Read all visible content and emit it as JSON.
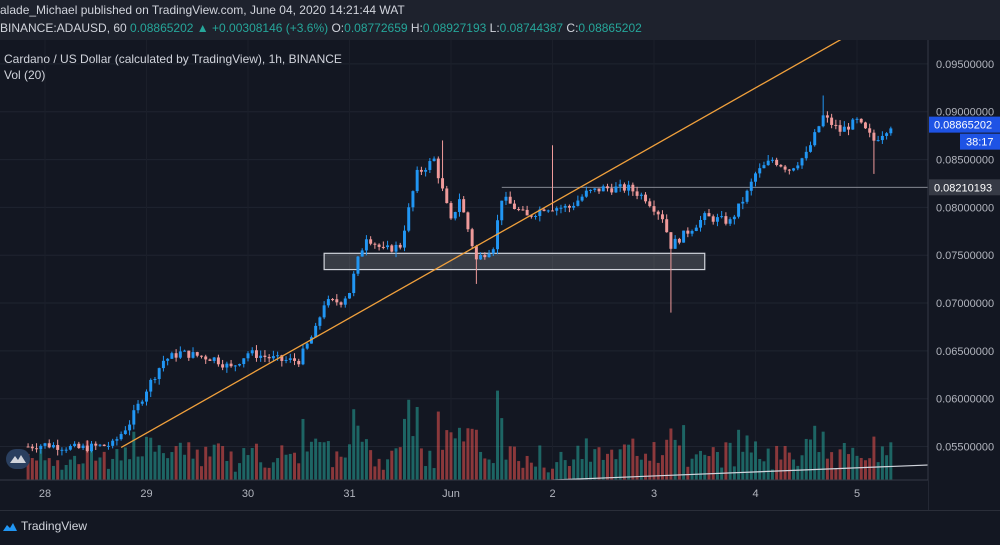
{
  "header": {
    "publisher": "alade_Michael published on TradingView.com, June 04, 2020 14:21:44 WAT",
    "symbol": "BINANCE:ADAUSD, 60",
    "last": "0.08865202",
    "change": "+0.00308146 (+3.6%)",
    "o_label": "O:",
    "o_value": "0.08772659",
    "h_label": "H:",
    "h_value": "0.08927193",
    "l_label": "L:",
    "l_value": "0.08744387",
    "c_label": "C:",
    "c_value": "0.08865202"
  },
  "legend": {
    "title": "Cardano / US Dollar (calculated by TradingView), 1h, BINANCE",
    "vol": "Vol (20)"
  },
  "footer": {
    "brand": "TradingView"
  },
  "colors": {
    "background": "#131722",
    "up": "#2196f3",
    "down": "#ef9a9a",
    "vol_up": "#26a69a",
    "vol_down": "#ef5350",
    "trendline": "#f0a03c",
    "support_box": "#d1d4dc",
    "price_label": "#1e53e5"
  },
  "chart_data": {
    "type": "candlestick",
    "y_ticks": [
      "0.09500000",
      "0.09000000",
      "0.08500000",
      "0.08000000",
      "0.07500000",
      "0.07000000",
      "0.06500000",
      "0.06000000",
      "0.05500000"
    ],
    "ylim": [
      0.0515,
      0.0975
    ],
    "x_ticks": [
      "28",
      "29",
      "30",
      "31",
      "Jun",
      "2",
      "3",
      "4",
      "5"
    ],
    "current_price_label": "0.08865202",
    "countdown_label": "38:17",
    "horizontal_level_label": "0.08210193",
    "horizontal_level": 0.0821,
    "support_zone": {
      "low": 0.0735,
      "high": 0.0752,
      "from": "May 30 18:00",
      "to": "Jun 3 12:00"
    },
    "trendline": {
      "from": {
        "x": "May 28 18:00",
        "y": 0.0549
      },
      "to": {
        "x": "Jun 4 16:00",
        "y": 0.0965
      }
    },
    "price_path": [
      [
        "May 27 20:00",
        0.055
      ],
      [
        "May 28 00:00",
        0.0552
      ],
      [
        "May 28 08:00",
        0.0548
      ],
      [
        "May 28 16:00",
        0.0552
      ],
      [
        "May 28 20:00",
        0.0575
      ],
      [
        "May 29 00:00",
        0.061
      ],
      [
        "May 29 04:00",
        0.064
      ],
      [
        "May 29 08:00",
        0.0648
      ],
      [
        "May 29 16:00",
        0.0642
      ],
      [
        "May 29 20:00",
        0.0632
      ],
      [
        "May 30 00:00",
        0.0648
      ],
      [
        "May 30 08:00",
        0.064
      ],
      [
        "May 30 12:00",
        0.064
      ],
      [
        "May 30 16:00",
        0.0672
      ],
      [
        "May 30 18:00",
        0.07
      ],
      [
        "May 30 22:00",
        0.0702
      ],
      [
        "May 31 00:00",
        0.0712
      ],
      [
        "May 31 02:00",
        0.0745
      ],
      [
        "May 31 04:00",
        0.077
      ],
      [
        "May 31 08:00",
        0.0755
      ],
      [
        "May 31 12:00",
        0.076
      ],
      [
        "May 31 16:00",
        0.0835
      ],
      [
        "May 31 20:00",
        0.085
      ],
      [
        "Jun 1 00:00",
        0.0785
      ],
      [
        "Jun 1 02:00",
        0.081
      ],
      [
        "Jun 1 06:00",
        0.0745
      ],
      [
        "Jun 1 10:00",
        0.076
      ],
      [
        "Jun 1 12:00",
        0.081
      ],
      [
        "Jun 1 18:00",
        0.079
      ],
      [
        "Jun 1 22:00",
        0.08
      ],
      [
        "Jun 2 04:00",
        0.08
      ],
      [
        "Jun 2 08:00",
        0.0815
      ],
      [
        "Jun 2 12:00",
        0.082
      ],
      [
        "Jun 2 18:00",
        0.082
      ],
      [
        "Jun 2 22:00",
        0.081
      ],
      [
        "Jun 3 02:00",
        0.079
      ],
      [
        "Jun 3 04:00",
        0.076
      ],
      [
        "Jun 3 08:00",
        0.0775
      ],
      [
        "Jun 3 12:00",
        0.079
      ],
      [
        "Jun 3 18:00",
        0.0785
      ],
      [
        "Jun 3 22:00",
        0.0815
      ],
      [
        "Jun 4 00:00",
        0.0835
      ],
      [
        "Jun 4 04:00",
        0.085
      ],
      [
        "Jun 4 08:00",
        0.084
      ],
      [
        "Jun 4 12:00",
        0.0855
      ],
      [
        "Jun 4 16:00",
        0.0895
      ],
      [
        "Jun 4 20:00",
        0.088
      ],
      [
        "Jun 5 00:00",
        0.089
      ],
      [
        "Jun 5 04:00",
        0.087
      ],
      [
        "Jun 5 08:00",
        0.0886
      ]
    ],
    "spikes": [
      {
        "x": "May 31 22:00",
        "high": 0.087
      },
      {
        "x": "Jun 1 06:00",
        "low": 0.072
      },
      {
        "x": "Jun 2 00:00",
        "high": 0.0865
      },
      {
        "x": "Jun 3 04:00",
        "low": 0.069
      },
      {
        "x": "Jun 4 16:00",
        "high": 0.0917
      },
      {
        "x": "Jun 5 04:00",
        "low": 0.0835
      }
    ],
    "volume_overlay_line": {
      "from": {
        "x": "Jun 2 00:00"
      },
      "to": {
        "x": "Jun 6 00:00"
      }
    }
  }
}
